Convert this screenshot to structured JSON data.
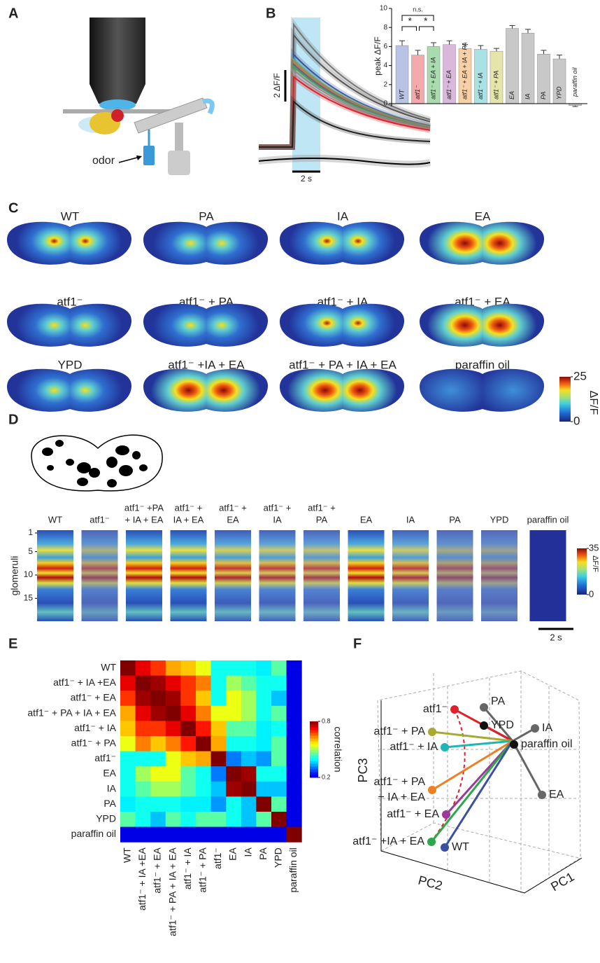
{
  "panel_labels": [
    "A",
    "B",
    "C",
    "D",
    "E",
    "F"
  ],
  "panel_a": {
    "odor_label": "odor"
  },
  "panel_b": {
    "scale_y": "2 ΔF/F",
    "scale_x": "2 s",
    "chart_data": {
      "type": "bar",
      "ylabel": "peak ΔF/F",
      "categories": [
        "WT",
        "atf1⁻",
        "atf1⁻ + EA + IA",
        "atf1⁻ + EA",
        "atf1⁻ + EA + IA + PA",
        "atf1⁻ + IA",
        "atf1⁻ + PA",
        "EA",
        "IA",
        "PA",
        "YPD",
        "paraffin oil"
      ],
      "values": [
        6.1,
        5.1,
        6.0,
        6.2,
        5.8,
        5.7,
        5.5,
        7.9,
        7.4,
        5.2,
        4.7,
        -0.2
      ],
      "errors": [
        0.5,
        0.5,
        0.4,
        0.4,
        0.4,
        0.4,
        0.3,
        0.3,
        0.4,
        0.4,
        0.4,
        0.1
      ],
      "colors": [
        "#b9c3e6",
        "#f4a9ab",
        "#a8dcae",
        "#d9b8dc",
        "#f9cfa5",
        "#a9e2e4",
        "#e5e5ab",
        "#c8c8c8",
        "#c8c8c8",
        "#c8c8c8",
        "#c8c8c8",
        "#c8c8c8"
      ],
      "label_colors": [
        "#3a4fa0",
        "#e0202a",
        "#2aa84a",
        "#9b3a9b",
        "#f07f22",
        "#1fb5b5",
        "#a9a930",
        "#555555",
        "#555555",
        "#555555",
        "#222222",
        "#222222"
      ],
      "ylim": [
        0,
        10
      ],
      "yticks": [
        0,
        2,
        4,
        6,
        8,
        10
      ],
      "annotations": [
        "n.s.",
        "*",
        "*"
      ]
    }
  },
  "panel_c": {
    "labels": [
      "WT",
      "PA",
      "IA",
      "EA",
      "atf1⁻",
      "atf1⁻ + PA",
      "atf1⁻ + IA",
      "atf1⁻ + EA",
      "YPD",
      "atf1⁻ +IA + EA",
      "atf1⁻ + PA + IA + EA",
      "paraffin oil"
    ],
    "label_colors": [
      "#3a4fa0",
      "#666666",
      "#666666",
      "#666666",
      "#e0202a",
      "#a9a930",
      "#1fb5b5",
      "#9b3a9b",
      "#222222",
      "#2aa84a",
      "#f07f22",
      "#222222"
    ],
    "colorbar_ticks": [
      0,
      25
    ],
    "colorbar_label": "ΔF/F"
  },
  "panel_d": {
    "columns": [
      [
        "WT"
      ],
      [
        "atf1⁻"
      ],
      [
        "atf1⁻ +PA",
        "+ IA + EA"
      ],
      [
        "atf1⁻ +",
        "IA + EA"
      ],
      [
        "atf1⁻ +",
        "EA"
      ],
      [
        "atf1⁻ +",
        "IA"
      ],
      [
        "atf1⁻ +",
        "PA"
      ],
      [
        "EA"
      ],
      [
        "IA"
      ],
      [
        "PA"
      ],
      [
        "YPD"
      ],
      [
        "paraffin oil"
      ]
    ],
    "column_colors": [
      "#3a4fa0",
      "#e0202a",
      "#f07f22",
      "#2aa84a",
      "#9b3a9b",
      "#1fb5b5",
      "#a9a930",
      "#666666",
      "#666666",
      "#666666",
      "#222222",
      "#222222"
    ],
    "ylabel": "glomeruli",
    "ylim": [
      1,
      19
    ],
    "yticks": [
      1,
      5,
      10,
      15
    ],
    "colorbar_ticks": [
      0,
      35
    ],
    "colorbar_label": "ΔF/F",
    "scale_x": "2 s"
  },
  "panel_e": {
    "chart_data": {
      "type": "heatmap",
      "labels": [
        "WT",
        "atf1⁻ + IA +EA",
        "atf1⁻ + EA",
        "atf1⁻ + PA + IA + EA",
        "atf1⁻ + IA",
        "atf1⁻ + PA",
        "atf1⁻",
        "EA",
        "IA",
        "PA",
        "YPD",
        "paraffin oil"
      ],
      "label_colors": [
        "#3a4fa0",
        "#2aa84a",
        "#9b3a9b",
        "#f07f22",
        "#1fb5b5",
        "#a9a930",
        "#e0202a",
        "#555555",
        "#555555",
        "#555555",
        "#222222",
        "#222222"
      ],
      "matrix": [
        [
          1,
          0.75,
          0.7,
          0.62,
          0.6,
          0.55,
          0.4,
          0.4,
          0.4,
          0.38,
          0.45,
          0.2
        ],
        [
          0.75,
          1,
          0.8,
          0.75,
          0.7,
          0.65,
          0.4,
          0.5,
          0.45,
          0.4,
          0.4,
          0.2
        ],
        [
          0.7,
          0.8,
          1,
          0.8,
          0.7,
          0.6,
          0.4,
          0.55,
          0.5,
          0.4,
          0.35,
          0.2
        ],
        [
          0.62,
          0.75,
          0.8,
          1,
          0.75,
          0.65,
          0.55,
          0.55,
          0.5,
          0.4,
          0.45,
          0.2
        ],
        [
          0.6,
          0.7,
          0.7,
          0.75,
          1,
          0.72,
          0.6,
          0.45,
          0.45,
          0.38,
          0.4,
          0.2
        ],
        [
          0.55,
          0.65,
          0.6,
          0.65,
          0.72,
          1,
          0.62,
          0.4,
          0.4,
          0.38,
          0.45,
          0.2
        ],
        [
          0.4,
          0.4,
          0.4,
          0.55,
          0.6,
          0.62,
          1,
          0.3,
          0.35,
          0.32,
          0.45,
          0.2
        ],
        [
          0.4,
          0.5,
          0.55,
          0.55,
          0.45,
          0.4,
          0.3,
          1,
          0.8,
          0.4,
          0.4,
          0.2
        ],
        [
          0.4,
          0.45,
          0.5,
          0.5,
          0.45,
          0.4,
          0.35,
          0.8,
          1,
          0.35,
          0.35,
          0.2
        ],
        [
          0.38,
          0.4,
          0.4,
          0.4,
          0.38,
          0.38,
          0.32,
          0.4,
          0.35,
          1,
          0.45,
          0.2
        ],
        [
          0.45,
          0.4,
          0.35,
          0.45,
          0.4,
          0.45,
          0.45,
          0.4,
          0.35,
          0.45,
          1,
          0.2
        ],
        [
          0.2,
          0.2,
          0.2,
          0.2,
          0.2,
          0.2,
          0.2,
          0.2,
          0.2,
          0.2,
          0.2,
          1
        ]
      ],
      "clim": [
        0.2,
        0.8
      ],
      "colorbar_ticks": [
        0.2,
        0.8
      ],
      "colorbar_label": "correlation"
    }
  },
  "panel_f": {
    "points": [
      {
        "label": [
          "PA"
        ],
        "color": "#666666"
      },
      {
        "label": [
          "YPD"
        ],
        "color": "#111111"
      },
      {
        "label": [
          "IA"
        ],
        "color": "#666666"
      },
      {
        "label": [
          "paraffin oil"
        ],
        "color": "#111111"
      },
      {
        "label": [
          "EA"
        ],
        "color": "#666666"
      },
      {
        "label": [
          "atf1⁻"
        ],
        "color": "#e0202a"
      },
      {
        "label": [
          "atf1⁻ + PA"
        ],
        "color": "#a9a930"
      },
      {
        "label": [
          "atf1⁻ + IA"
        ],
        "color": "#1fb5b5"
      },
      {
        "label": [
          "atf1⁻ + PA",
          "+ IA + EA"
        ],
        "color": "#f07f22"
      },
      {
        "label": [
          "atf1⁻ + EA"
        ],
        "color": "#9b3a9b"
      },
      {
        "label": [
          "atf1⁻ +IA + EA"
        ],
        "color": "#2aa84a"
      },
      {
        "label": [
          "WT"
        ],
        "color": "#3a4fa0"
      }
    ],
    "axis_labels": [
      "PC1",
      "PC2",
      "PC3"
    ]
  }
}
